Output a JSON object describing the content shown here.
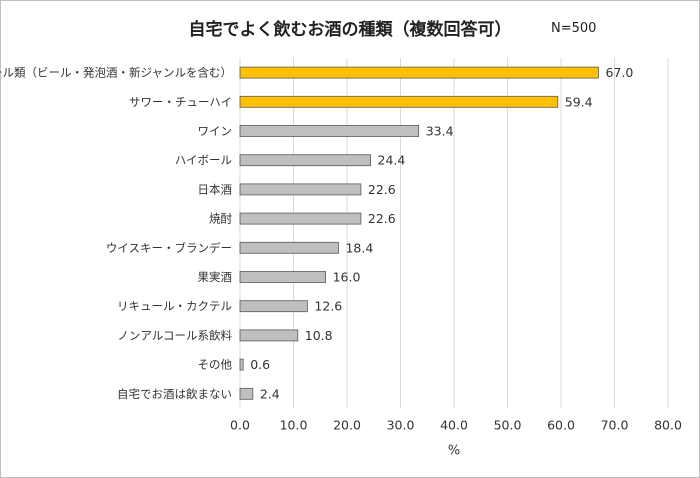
{
  "chart_data": {
    "type": "bar",
    "orientation": "horizontal",
    "title": "自宅でよく飲むお酒の種類（複数回答可）",
    "note": "N=500",
    "xlabel": "%",
    "xlim": [
      0,
      80
    ],
    "xticks": [
      "0.0",
      "10.0",
      "20.0",
      "30.0",
      "40.0",
      "50.0",
      "60.0",
      "70.0",
      "80.0"
    ],
    "grid": true,
    "categories": [
      "ビール類（ビール・発泡酒・新ジャンルを含む）",
      "サワー・チューハイ",
      "ワイン",
      "ハイボール",
      "日本酒",
      "焼酎",
      "ウイスキー・ブランデー",
      "果実酒",
      "リキュール・カクテル",
      "ノンアルコール系飲料",
      "その他",
      "自宅でお酒は飲まない"
    ],
    "values": [
      67.0,
      59.4,
      33.4,
      24.4,
      22.6,
      22.6,
      18.4,
      16.0,
      12.6,
      10.8,
      0.6,
      2.4
    ],
    "value_labels": [
      "67.0",
      "59.4",
      "33.4",
      "24.4",
      "22.6",
      "22.6",
      "18.4",
      "16.0",
      "12.6",
      "10.8",
      "0.6",
      "2.4"
    ],
    "highlight_color": "#ffc000",
    "bar_color": "#bfbfbf"
  }
}
